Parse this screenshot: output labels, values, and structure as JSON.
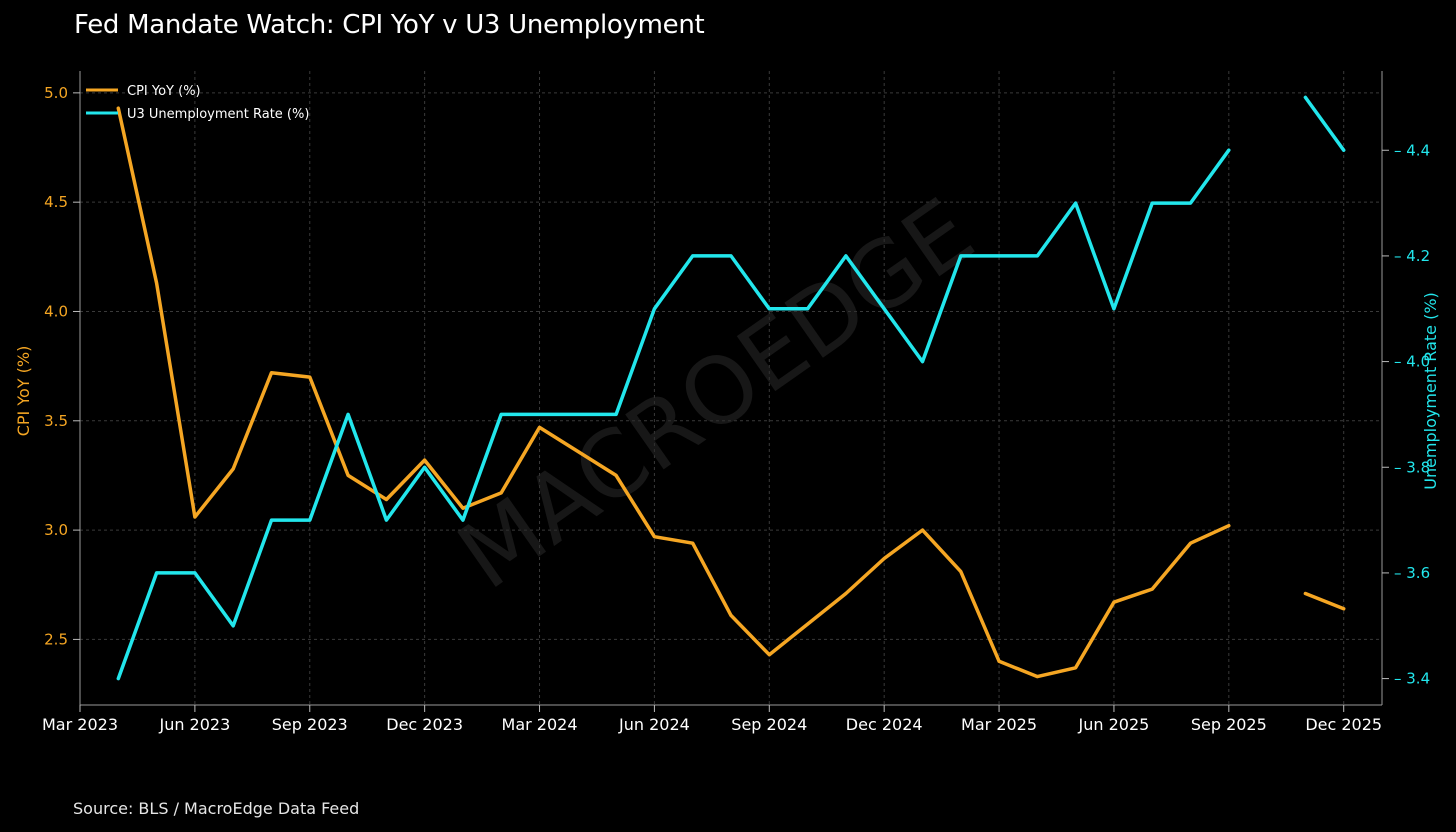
{
  "chart_data": {
    "type": "line",
    "title": "Fed Mandate Watch: CPI YoY v U3 Unemployment",
    "source": "Source: BLS / MacroEdge Data Feed",
    "watermark": "MACROEDGE",
    "x": [
      "2023-04",
      "2023-05",
      "2023-06",
      "2023-07",
      "2023-08",
      "2023-09",
      "2023-10",
      "2023-11",
      "2023-12",
      "2024-01",
      "2024-02",
      "2024-03",
      "2024-04",
      "2024-05",
      "2024-06",
      "2024-07",
      "2024-08",
      "2024-09",
      "2024-10",
      "2024-11",
      "2024-12",
      "2025-01",
      "2025-02",
      "2025-03",
      "2025-04",
      "2025-05",
      "2025-06",
      "2025-07",
      "2025-08",
      "2025-09",
      "2025-10",
      "2025-11",
      "2025-12"
    ],
    "xlim": [
      "2023-03",
      "2026-01"
    ],
    "x_ticks": [
      "Mar 2023",
      "Jun 2023",
      "Sep 2023",
      "Dec 2023",
      "Mar 2024",
      "Jun 2024",
      "Sep 2024",
      "Dec 2024",
      "Mar 2025",
      "Jun 2025",
      "Sep 2025",
      "Dec 2025"
    ],
    "x_tick_dates": [
      "2023-03",
      "2023-06",
      "2023-09",
      "2023-12",
      "2024-03",
      "2024-06",
      "2024-09",
      "2024-12",
      "2025-03",
      "2025-06",
      "2025-09",
      "2025-12"
    ],
    "ylabel_left": "CPI YoY (%)",
    "ylabel_right": "Unemployment Rate (%)",
    "ylim_left": [
      2.2,
      5.1
    ],
    "ylim_right": [
      3.35,
      4.55
    ],
    "y_ticks_left": [
      "2.5",
      "3.0",
      "3.5",
      "4.0",
      "4.5",
      "5.0"
    ],
    "y_ticks_right": [
      "3.4",
      "3.6",
      "3.8",
      "4.0",
      "4.2",
      "4.4"
    ],
    "grid": true,
    "legend_position": "top-left",
    "series": [
      {
        "name": "CPI YoY (%)",
        "axis": "left",
        "color": "#f5a623",
        "values": [
          4.93,
          4.13,
          3.06,
          3.28,
          3.72,
          3.7,
          3.25,
          3.14,
          3.32,
          3.1,
          3.17,
          3.47,
          3.36,
          3.25,
          2.97,
          2.94,
          2.61,
          2.43,
          2.57,
          2.71,
          2.87,
          3.0,
          2.81,
          2.4,
          2.33,
          2.37,
          2.67,
          2.73,
          2.94,
          3.02,
          null,
          2.71,
          2.64
        ]
      },
      {
        "name": "U3 Unemployment Rate (%)",
        "axis": "right",
        "color": "#22e6ec",
        "values": [
          3.4,
          3.6,
          3.6,
          3.5,
          3.7,
          3.7,
          3.9,
          3.7,
          3.8,
          3.7,
          3.9,
          3.9,
          3.9,
          3.9,
          4.1,
          4.2,
          4.2,
          4.1,
          4.1,
          4.2,
          4.1,
          4.0,
          4.2,
          4.2,
          4.2,
          4.3,
          4.1,
          4.3,
          4.3,
          4.4,
          null,
          4.5,
          4.4
        ]
      }
    ]
  }
}
